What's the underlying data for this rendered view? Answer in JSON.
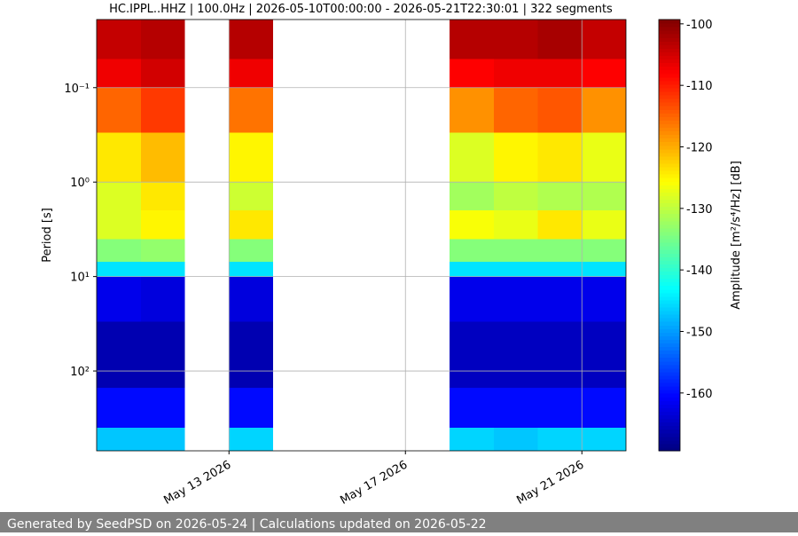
{
  "chart_data": {
    "type": "spectrogram",
    "title": "HC.IPPL..HHZ | 100.0Hz | 2026-05-10T00:00:00 - 2026-05-21T22:30:01 | 322 segments",
    "y_label": "Period [s]",
    "colorbar_label": "Amplitude [m²/s⁴/Hz] [dB]",
    "footer": "Generated by SeedPSD on 2026-05-24 | Calculations updated on 2026-05-22",
    "xlim": [
      "2026-05-10",
      "2026-05-22"
    ],
    "xticks": [
      {
        "value": "2026-05-13",
        "label": "May 13 2026"
      },
      {
        "value": "2026-05-17",
        "label": "May 17 2026"
      },
      {
        "value": "2026-05-21",
        "label": "May 21 2026"
      }
    ],
    "ylim": [
      0.019,
      700
    ],
    "ylog": true,
    "yinverted": true,
    "yticks": [
      {
        "value": 0.1,
        "label": "10⁻¹"
      },
      {
        "value": 1,
        "label": "10⁰"
      },
      {
        "value": 10,
        "label": "10¹"
      },
      {
        "value": 100,
        "label": "10²"
      }
    ],
    "grid": true,
    "colormap": "jet",
    "clim": [
      -169.4,
      -99.3
    ],
    "cticks": [
      -100,
      -110,
      -120,
      -130,
      -140,
      -150,
      -160
    ],
    "x_edges": [
      "2026-05-10",
      "2026-05-11",
      "2026-05-12",
      "2026-05-13",
      "2026-05-14",
      "2026-05-15",
      "2026-05-16",
      "2026-05-17",
      "2026-05-18",
      "2026-05-19",
      "2026-05-20",
      "2026-05-21",
      "2026-05-22"
    ],
    "y_edges": [
      0.019,
      0.05,
      0.1,
      0.3,
      1,
      2,
      4,
      7,
      10,
      30,
      150,
      400,
      700
    ],
    "z": [
      [
        -104,
        -103,
        null,
        -103,
        null,
        null,
        null,
        null,
        -103,
        -103,
        -102,
        -104
      ],
      [
        -107,
        -105,
        null,
        -107,
        null,
        null,
        null,
        null,
        -108,
        -107,
        -107,
        -108
      ],
      [
        -115,
        -112,
        null,
        -116,
        null,
        null,
        null,
        null,
        -118,
        -115,
        -114,
        -118
      ],
      [
        -124,
        -121,
        null,
        -125,
        null,
        null,
        null,
        null,
        -128,
        -125,
        -124,
        -127
      ],
      [
        -128,
        -124,
        null,
        -129,
        null,
        null,
        null,
        null,
        -132,
        -130,
        -131,
        -131
      ],
      [
        -128,
        -125,
        null,
        -124,
        null,
        null,
        null,
        null,
        -126,
        -127,
        -124,
        -127
      ],
      [
        -134,
        -133,
        null,
        -134,
        null,
        null,
        null,
        null,
        -134,
        -134,
        -134,
        -134
      ],
      [
        -145,
        -145,
        null,
        -145,
        null,
        null,
        null,
        null,
        -145,
        -145,
        -145,
        -145
      ],
      [
        -162,
        -163,
        null,
        -163,
        null,
        null,
        null,
        null,
        -162,
        -162,
        -162,
        -162
      ],
      [
        -166,
        -166,
        null,
        -166,
        null,
        null,
        null,
        null,
        -165,
        -165,
        -165,
        -165
      ],
      [
        -160,
        -160,
        null,
        -160,
        null,
        null,
        null,
        null,
        -160,
        -160,
        -160,
        -160
      ],
      [
        -147,
        -147,
        null,
        -146,
        null,
        null,
        null,
        null,
        -146,
        -147,
        -146,
        -146
      ]
    ]
  }
}
